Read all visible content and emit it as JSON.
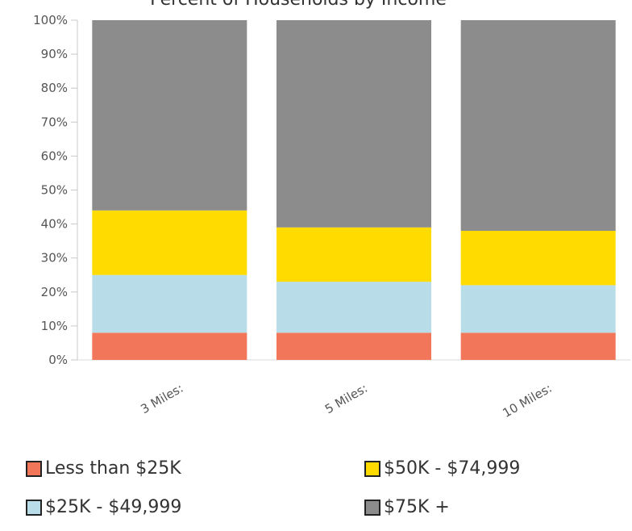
{
  "chart_data": {
    "type": "bar",
    "stacked": true,
    "title": "Percent of Households by Income",
    "categories": [
      "3 Miles:",
      "5 Miles:",
      "10 Miles:"
    ],
    "series": [
      {
        "name": "Less than $25K",
        "color": "#f2775a",
        "values": [
          8,
          8,
          8
        ]
      },
      {
        "name": "$25K - $49,999",
        "color": "#b9dde8",
        "values": [
          17,
          15,
          14
        ]
      },
      {
        "name": "$50K - $74,999",
        "color": "#ffdb00",
        "values": [
          19,
          16,
          16
        ]
      },
      {
        "name": "$75K +",
        "color": "#8c8c8c",
        "values": [
          56,
          61,
          62
        ]
      }
    ],
    "ylim": [
      0,
      100
    ],
    "yticks": [
      "0%",
      "10%",
      "20%",
      "30%",
      "40%",
      "50%",
      "60%",
      "70%",
      "80%",
      "90%",
      "100%"
    ],
    "legend_position": "bottom",
    "grid": false
  }
}
